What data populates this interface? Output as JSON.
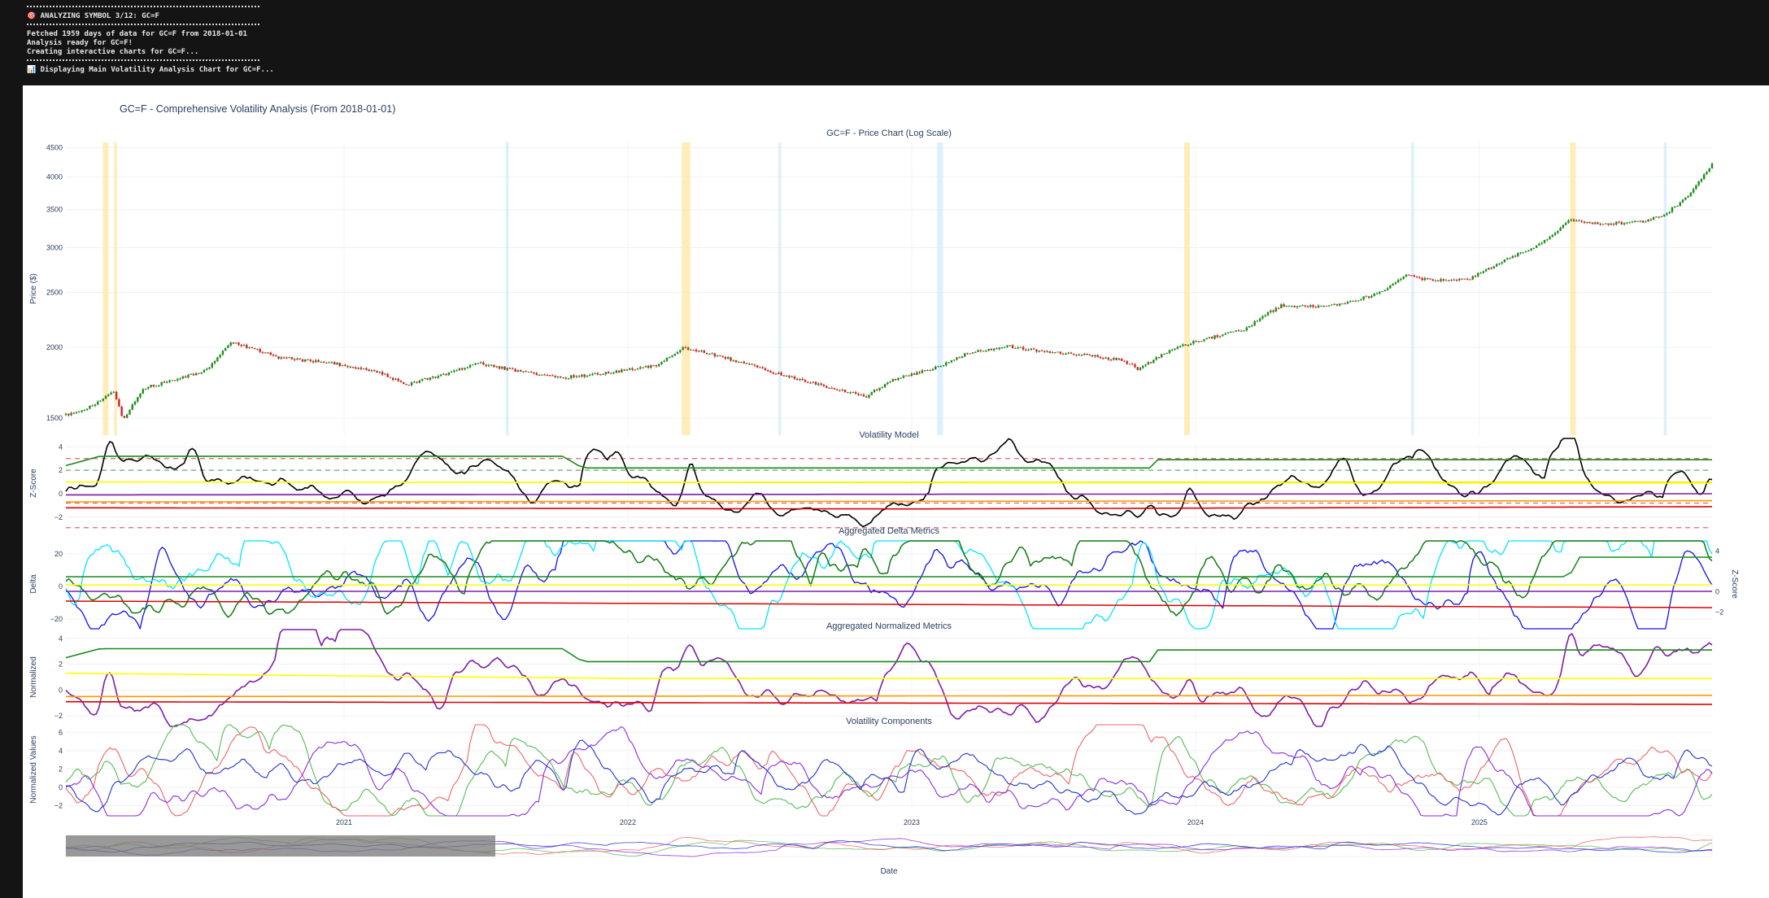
{
  "console": {
    "lines": [
      {
        "kind": "sep"
      },
      {
        "kind": "text",
        "text": "🎯 ANALYZING SYMBOL 3/12: GC=F"
      },
      {
        "kind": "sep"
      },
      {
        "kind": "text",
        "text": "Fetched 1959 days of data for GC=F from 2018-01-01"
      },
      {
        "kind": "text",
        "text": "Analysis ready for GC=F!"
      },
      {
        "kind": "text",
        "text": "Creating interactive charts for GC=F..."
      },
      {
        "kind": "sep"
      },
      {
        "kind": "text",
        "text": "📊 Displaying Main Volatility Analysis Chart for GC=F..."
      }
    ]
  },
  "figure": {
    "title": "GC=F - Comprehensive Volatility Analysis (From 2018-01-01)",
    "x_axis_label": "Date",
    "x_ticks": [
      "2021",
      "2022",
      "2023",
      "2024",
      "2025"
    ]
  },
  "chart_data": [
    {
      "type": "line",
      "subtype": "candlestick",
      "title": "GC=F - Price Chart (Log Scale)",
      "ylabel": "Price ($)",
      "yscale": "log",
      "ylim": [
        1400,
        4600
      ],
      "y_ticks": [
        "1500",
        "2000",
        "2500",
        "3000",
        "3500",
        "4000",
        "4500"
      ],
      "y_tick_values": [
        1500,
        2000,
        2500,
        3000,
        3500,
        4000,
        4500
      ],
      "x_range": [
        2020.0,
        2025.8
      ],
      "price_anchors": [
        [
          2020.0,
          1520
        ],
        [
          2020.1,
          1580
        ],
        [
          2020.17,
          1680
        ],
        [
          2020.2,
          1490
        ],
        [
          2020.28,
          1700
        ],
        [
          2020.4,
          1760
        ],
        [
          2020.5,
          1830
        ],
        [
          2020.58,
          2050
        ],
        [
          2020.75,
          1920
        ],
        [
          2020.95,
          1870
        ],
        [
          2021.1,
          1810
        ],
        [
          2021.2,
          1720
        ],
        [
          2021.35,
          1800
        ],
        [
          2021.45,
          1880
        ],
        [
          2021.6,
          1810
        ],
        [
          2021.75,
          1770
        ],
        [
          2021.9,
          1800
        ],
        [
          2022.08,
          1860
        ],
        [
          2022.18,
          2000
        ],
        [
          2022.35,
          1900
        ],
        [
          2022.5,
          1800
        ],
        [
          2022.65,
          1720
        ],
        [
          2022.82,
          1640
        ],
        [
          2022.92,
          1760
        ],
        [
          2023.08,
          1850
        ],
        [
          2023.18,
          1960
        ],
        [
          2023.32,
          2010
        ],
        [
          2023.45,
          1960
        ],
        [
          2023.6,
          1940
        ],
        [
          2023.72,
          1900
        ],
        [
          2023.78,
          1830
        ],
        [
          2023.9,
          1990
        ],
        [
          2024.0,
          2060
        ],
        [
          2024.15,
          2150
        ],
        [
          2024.28,
          2370
        ],
        [
          2024.45,
          2360
        ],
        [
          2024.62,
          2480
        ],
        [
          2024.72,
          2680
        ],
        [
          2024.82,
          2620
        ],
        [
          2024.95,
          2650
        ],
        [
          2025.1,
          2900
        ],
        [
          2025.2,
          3050
        ],
        [
          2025.3,
          3350
        ],
        [
          2025.4,
          3300
        ],
        [
          2025.55,
          3330
        ],
        [
          2025.63,
          3420
        ],
        [
          2025.72,
          3700
        ],
        [
          2025.8,
          4200
        ]
      ],
      "highlight_bands": [
        {
          "x0": 2020.13,
          "x1": 2020.15,
          "kind": "high-vol",
          "color": "#ffe9a8"
        },
        {
          "x0": 2020.17,
          "x1": 2020.18,
          "kind": "high-vol",
          "color": "#ffe9a8"
        },
        {
          "x0": 2022.17,
          "x1": 2022.2,
          "kind": "high-vol",
          "color": "#ffe9a8"
        },
        {
          "x0": 2023.94,
          "x1": 2023.96,
          "kind": "high-vol",
          "color": "#ffe9a8"
        },
        {
          "x0": 2025.3,
          "x1": 2025.32,
          "kind": "high-vol",
          "color": "#ffe9a8"
        },
        {
          "x0": 2021.55,
          "x1": 2021.56,
          "kind": "low-vol",
          "color": "#d6ebff"
        },
        {
          "x0": 2022.51,
          "x1": 2022.52,
          "kind": "low-vol",
          "color": "#d6ebff"
        },
        {
          "x0": 2023.07,
          "x1": 2023.09,
          "kind": "low-vol",
          "color": "#d6ebff"
        },
        {
          "x0": 2024.74,
          "x1": 2024.75,
          "kind": "low-vol",
          "color": "#d6ebff"
        },
        {
          "x0": 2025.63,
          "x1": 2025.64,
          "kind": "low-vol",
          "color": "#d6ebff"
        }
      ]
    },
    {
      "type": "line",
      "title": "Volatility Model",
      "ylabel": "Z-Score",
      "ylim": [
        -2.5,
        4.3
      ],
      "y_ticks": [
        "4",
        "2",
        "0",
        "−2"
      ],
      "y_tick_values": [
        4,
        2,
        0,
        -2
      ],
      "reference_lines": [
        {
          "y": 3.0,
          "color": "#e06666",
          "dash": true
        },
        {
          "y": 2.0,
          "color": "#66aa66",
          "dash": true
        },
        {
          "y": 1.0,
          "color": "#f3e000",
          "dash": false
        },
        {
          "y": -0.8,
          "color": "#e06666",
          "dash": true
        },
        {
          "y": -2.9,
          "color": "#e06666",
          "dash": true
        }
      ],
      "series": [
        {
          "name": "z-score",
          "color": "#000000",
          "width": 1.6,
          "seed": 11,
          "base": 0,
          "amp": 0.9,
          "spikes": [
            [
              2020.15,
              3.5
            ],
            [
              2020.45,
              1.5
            ],
            [
              2022.2,
              3.0
            ],
            [
              2023.05,
              1.4
            ],
            [
              2023.82,
              2.0
            ],
            [
              2023.96,
              2.2
            ],
            [
              2024.5,
              1.3
            ],
            [
              2025.3,
              3.8
            ],
            [
              2025.8,
              2.2
            ]
          ]
        },
        {
          "name": "upper-threshold",
          "color": "#1a8a1a",
          "width": 1.6,
          "steps": [
            [
              2020.0,
              2.4
            ],
            [
              2020.12,
              3.2
            ],
            [
              2021.75,
              3.2
            ],
            [
              2021.82,
              2.2
            ],
            [
              2023.82,
              2.2
            ],
            [
              2023.84,
              2.9
            ],
            [
              2025.3,
              2.9
            ],
            [
              2025.8,
              2.9
            ]
          ]
        },
        {
          "name": "yellow-band",
          "color": "#ffff00",
          "width": 1.6,
          "steps": [
            [
              2020.0,
              1.0
            ],
            [
              2025.8,
              0.9
            ]
          ]
        },
        {
          "name": "purple-mean",
          "color": "#7e1ea5",
          "width": 1.6,
          "steps": [
            [
              2020.0,
              -0.1
            ],
            [
              2025.8,
              0.0
            ]
          ]
        },
        {
          "name": "orange-low",
          "color": "#ff9900",
          "width": 1.6,
          "steps": [
            [
              2020.0,
              -0.7
            ],
            [
              2025.8,
              -0.6
            ]
          ]
        },
        {
          "name": "red-low",
          "color": "#dd0000",
          "width": 1.6,
          "steps": [
            [
              2020.0,
              -1.2
            ],
            [
              2023.0,
              -1.3
            ],
            [
              2025.8,
              -1.1
            ]
          ]
        }
      ]
    },
    {
      "type": "line",
      "title": "Aggregated Delta Metrics",
      "ylabel": "Delta",
      "y2label": "Z-Score",
      "ylim": [
        -22,
        25
      ],
      "y_ticks": [
        "20",
        "0",
        "−20"
      ],
      "y_tick_values": [
        20,
        0,
        -20
      ],
      "y2_ticks": [
        "4",
        "0",
        "−2"
      ],
      "y2_tick_values": [
        4,
        0,
        -2
      ],
      "series": [
        {
          "name": "delta-blue",
          "color": "#1010ee",
          "width": 1.3,
          "seed": 21,
          "base": 0,
          "amp": 10
        },
        {
          "name": "delta-cyan",
          "color": "#00e5ff",
          "width": 1.3,
          "seed": 22,
          "base": 0,
          "amp": 12
        },
        {
          "name": "delta-green",
          "color": "#107a10",
          "width": 1.5,
          "seed": 23,
          "base": 2,
          "amp": 10
        },
        {
          "name": "upper",
          "color": "#1a8a1a",
          "width": 1.5,
          "steps": [
            [
              2020.0,
              6
            ],
            [
              2025.3,
              6
            ],
            [
              2025.32,
              18
            ],
            [
              2025.8,
              18
            ]
          ]
        },
        {
          "name": "yellow",
          "color": "#ffff00",
          "width": 1.5,
          "steps": [
            [
              2020.0,
              1
            ],
            [
              2025.8,
              1
            ]
          ]
        },
        {
          "name": "purple",
          "color": "#7e1ea5",
          "width": 1.5,
          "steps": [
            [
              2020.0,
              -3
            ],
            [
              2025.8,
              -3
            ]
          ]
        },
        {
          "name": "red",
          "color": "#dd0000",
          "width": 1.5,
          "steps": [
            [
              2020.0,
              -9
            ],
            [
              2025.8,
              -13
            ]
          ]
        }
      ]
    },
    {
      "type": "line",
      "title": "Aggregated Normalized Metrics",
      "ylabel": "Normalized",
      "ylim": [
        -2.3,
        4.3
      ],
      "y_ticks": [
        "4",
        "2",
        "0",
        "−2"
      ],
      "y_tick_values": [
        4,
        2,
        0,
        -2
      ],
      "series": [
        {
          "name": "normalized",
          "color": "#7e1ea5",
          "width": 1.6,
          "seed": 31,
          "base": 0,
          "amp": 0.9,
          "spikes": [
            [
              2020.15,
              3.5
            ],
            [
              2022.2,
              2.9
            ],
            [
              2023.96,
              2.2
            ],
            [
              2025.3,
              3.8
            ],
            [
              2025.8,
              2.0
            ]
          ]
        },
        {
          "name": "upper",
          "color": "#1a8a1a",
          "width": 1.6,
          "steps": [
            [
              2020.0,
              2.5
            ],
            [
              2020.12,
              3.2
            ],
            [
              2021.75,
              3.2
            ],
            [
              2021.82,
              2.2
            ],
            [
              2023.82,
              2.2
            ],
            [
              2023.84,
              3.1
            ],
            [
              2025.8,
              3.1
            ]
          ]
        },
        {
          "name": "yellow",
          "color": "#ffff00",
          "width": 1.6,
          "steps": [
            [
              2020.0,
              1.3
            ],
            [
              2021.0,
              1.1
            ],
            [
              2022.0,
              0.9
            ],
            [
              2025.8,
              0.9
            ]
          ]
        },
        {
          "name": "orange",
          "color": "#ff9900",
          "width": 1.6,
          "steps": [
            [
              2020.0,
              -0.5
            ],
            [
              2025.8,
              -0.4
            ]
          ]
        },
        {
          "name": "red",
          "color": "#dd0000",
          "width": 1.6,
          "steps": [
            [
              2020.0,
              -0.9
            ],
            [
              2025.8,
              -1.1
            ]
          ]
        }
      ]
    },
    {
      "type": "line",
      "title": "Volatility Components",
      "ylabel": "Normalized Values",
      "ylim": [
        -2.4,
        6.3
      ],
      "y_ticks": [
        "6",
        "4",
        "2",
        "0",
        "−2"
      ],
      "y_tick_values": [
        6,
        4,
        2,
        0,
        -2
      ],
      "series": [
        {
          "name": "component-green",
          "color": "#55bb55",
          "width": 1.1,
          "seed": 41,
          "base": 0.3,
          "amp": 1.5
        },
        {
          "name": "component-red",
          "color": "#ee6666",
          "width": 1.1,
          "seed": 42,
          "base": 0.3,
          "amp": 1.5
        },
        {
          "name": "component-purple",
          "color": "#8a2be2",
          "width": 1.1,
          "seed": 43,
          "base": 0.2,
          "amp": 1.4
        },
        {
          "name": "component-blue",
          "color": "#2233cc",
          "width": 1.1,
          "seed": 44,
          "base": 0.2,
          "amp": 1.2
        }
      ]
    }
  ]
}
